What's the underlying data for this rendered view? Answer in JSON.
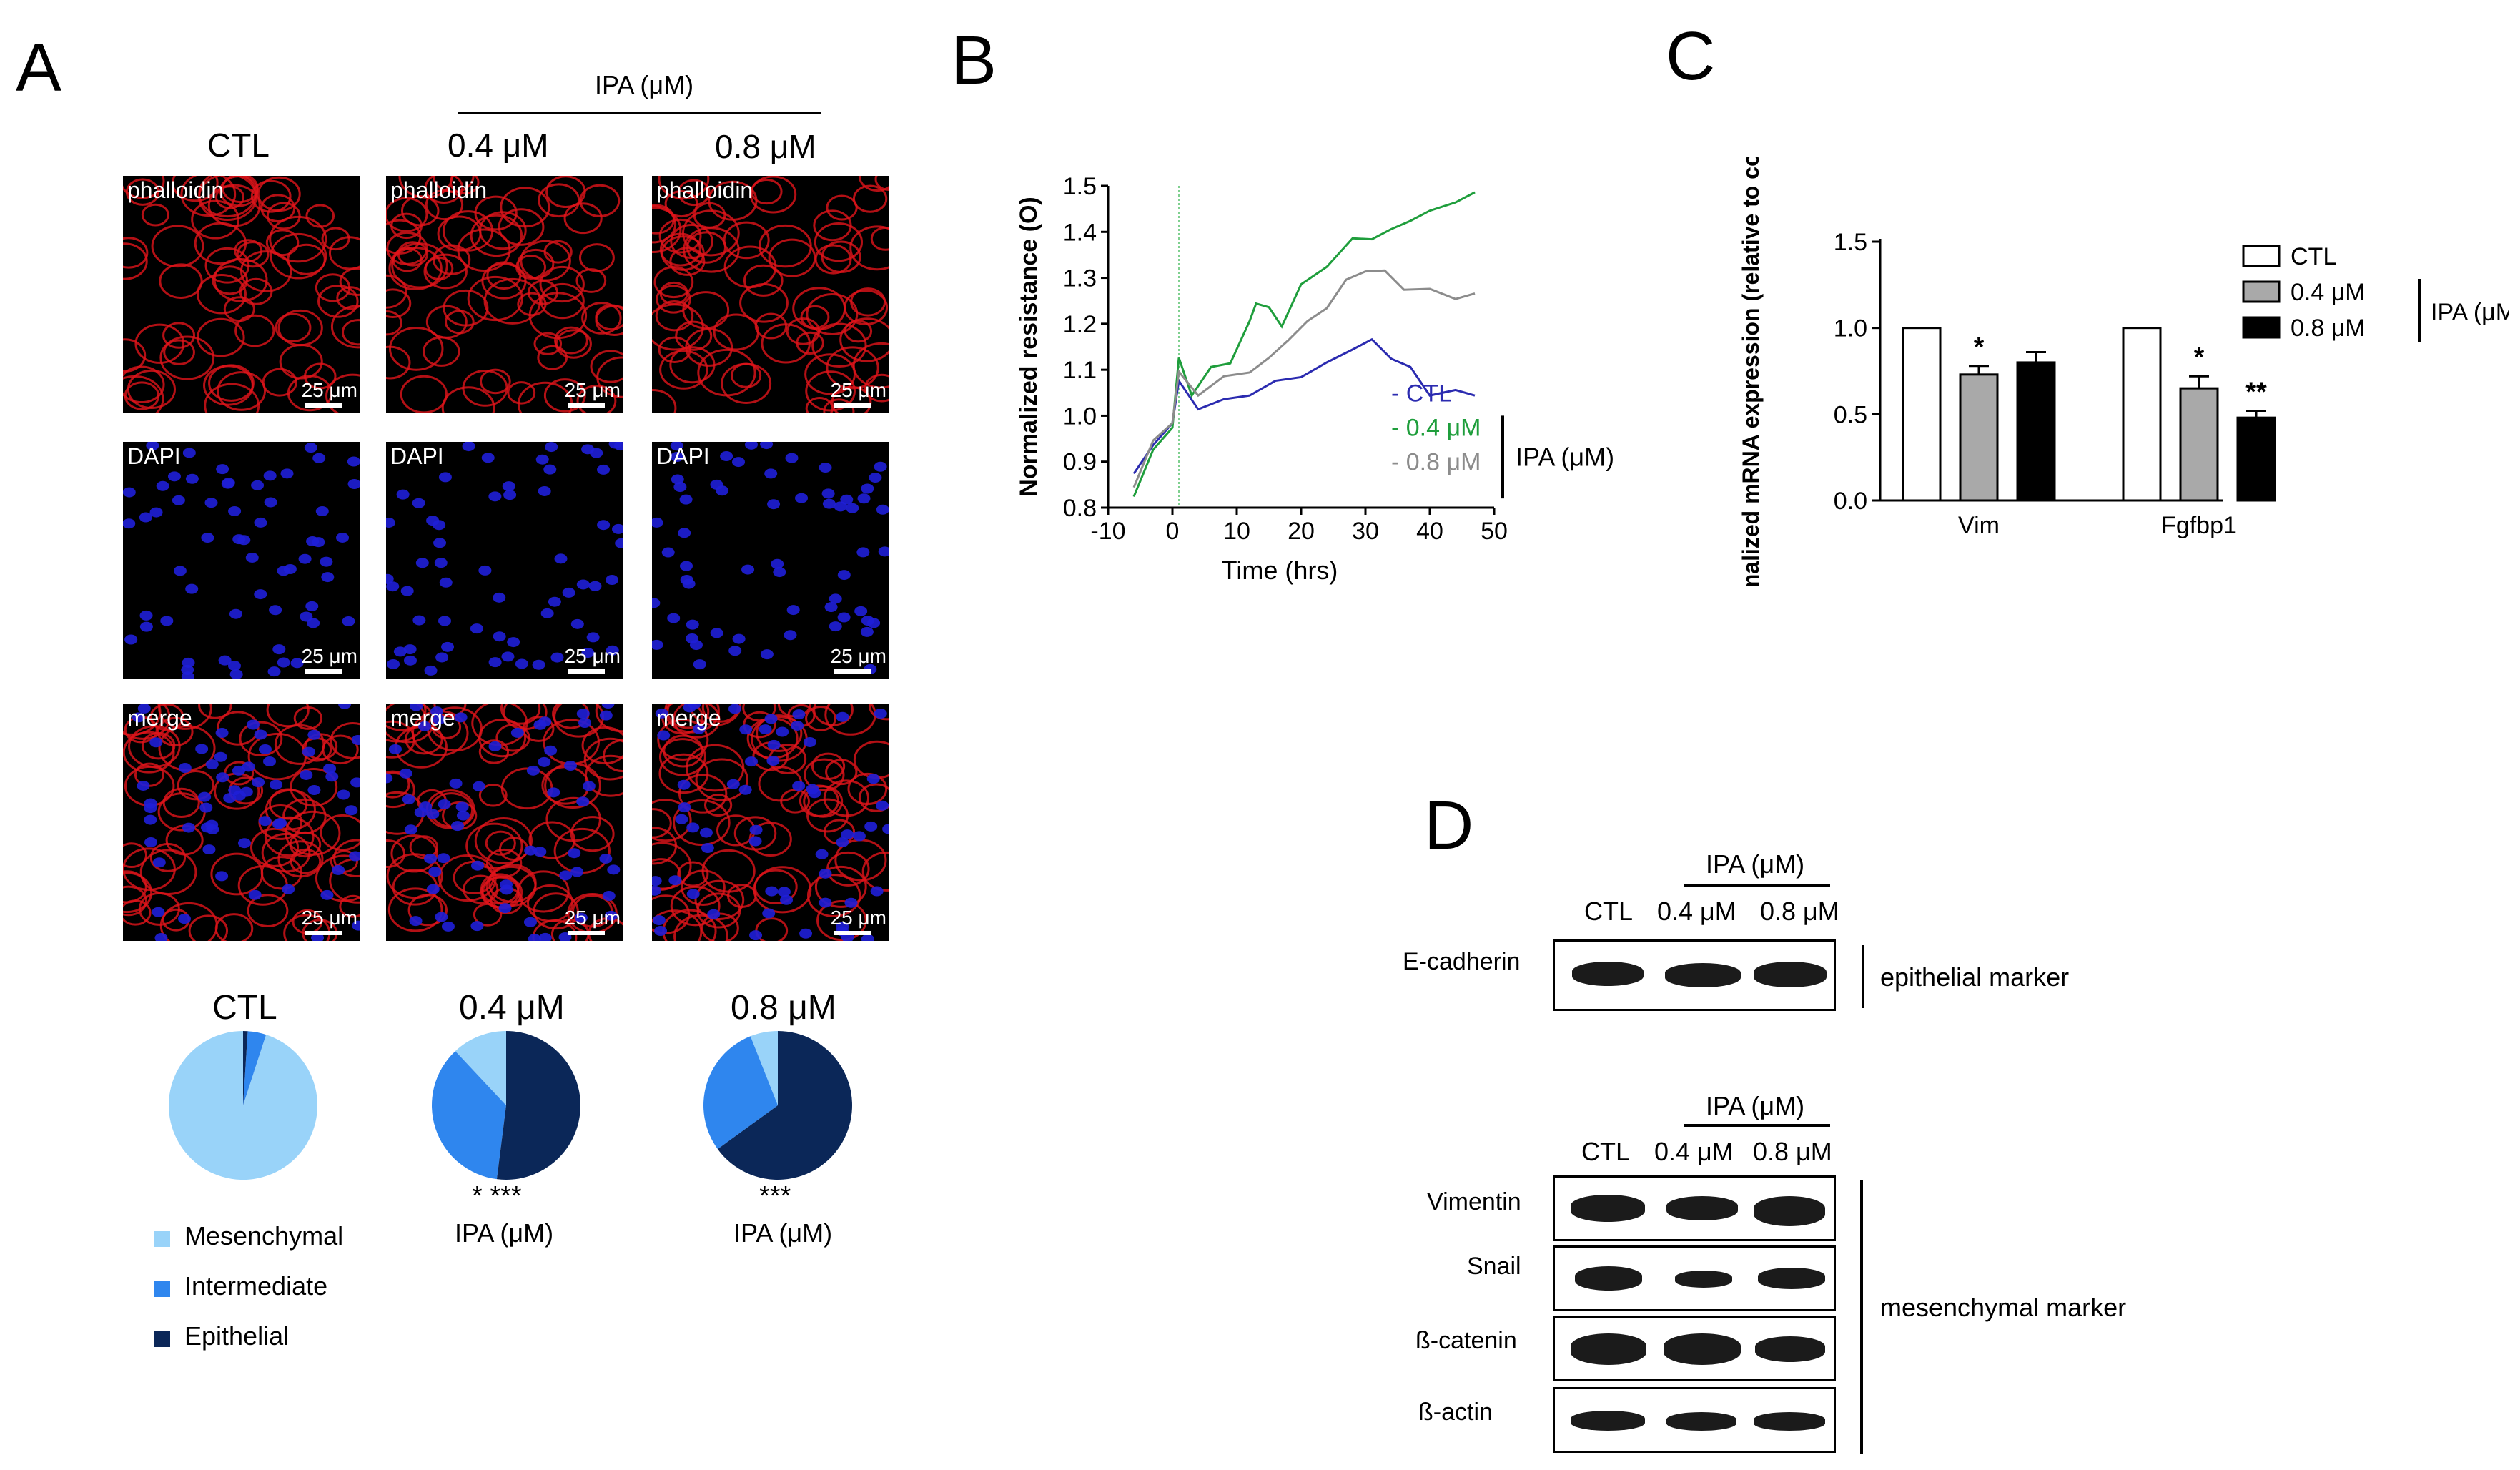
{
  "panels": {
    "A": "A",
    "B": "B",
    "C": "C",
    "D": "D"
  },
  "panelA": {
    "ipa_header": "IPA (μM)",
    "col_ctl": "CTL",
    "col_04": "0.4 μM",
    "col_08": "0.8 μM",
    "row_labels": [
      "phalloidin",
      "DAPI",
      "merge"
    ],
    "scale_bar": "25 μm",
    "pies": [
      {
        "title": "CTL",
        "fractions": {
          "mesenchymal": 0.95,
          "intermediate": 0.04,
          "epithelial": 0.01
        },
        "stars": "",
        "ipa": ""
      },
      {
        "title": "0.4 μM",
        "fractions": {
          "mesenchymal": 0.12,
          "intermediate": 0.36,
          "epithelial": 0.52
        },
        "stars": "* ***",
        "ipa": "IPA (μM)"
      },
      {
        "title": "0.8 μM",
        "fractions": {
          "mesenchymal": 0.06,
          "intermediate": 0.29,
          "epithelial": 0.65
        },
        "stars": "***",
        "ipa": "IPA (μM)"
      }
    ],
    "legend": [
      {
        "label": "Mesenchymal",
        "color": "#99d3f9"
      },
      {
        "label": "Intermediate",
        "color": "#2f86ee"
      },
      {
        "label": "Epithelial",
        "color": "#0b2758"
      }
    ]
  },
  "chart_data": [
    {
      "type": "line",
      "panel": "B",
      "xlabel": "Time (hrs)",
      "ylabel": "Normalized resistance (O)",
      "xlim": [
        -10,
        50
      ],
      "ylim": [
        0.8,
        1.5
      ],
      "xticks": [
        "-10",
        "0",
        "10",
        "20",
        "30",
        "40",
        "50"
      ],
      "yticks": [
        "0.8",
        "0.9",
        "1.0",
        "1.1",
        "1.2",
        "1.3",
        "1.4",
        "1.5"
      ],
      "group_label": "IPA (μM)",
      "series": [
        {
          "name": "- CTL",
          "color": "#2b2bb0",
          "x": [
            -6,
            -3,
            0,
            1,
            4,
            8,
            12,
            16,
            20,
            24,
            28,
            31,
            34,
            37,
            40,
            44,
            47
          ],
          "y": [
            0.88,
            0.93,
            0.99,
            1.07,
            1.02,
            1.03,
            1.05,
            1.07,
            1.09,
            1.11,
            1.15,
            1.16,
            1.13,
            1.1,
            1.05,
            1.05,
            1.05
          ]
        },
        {
          "name": "- 0.4 μM",
          "color": "#1f9e3c",
          "x": [
            -6,
            -3,
            0,
            1,
            3,
            6,
            9,
            12,
            13,
            15,
            17,
            20,
            24,
            28,
            31,
            34,
            37,
            40,
            44,
            47
          ],
          "y": [
            0.83,
            0.92,
            0.98,
            1.12,
            1.05,
            1.1,
            1.12,
            1.2,
            1.25,
            1.23,
            1.2,
            1.28,
            1.33,
            1.38,
            1.39,
            1.4,
            1.43,
            1.44,
            1.47,
            1.48
          ]
        },
        {
          "name": "- 0.8 μM",
          "color": "#8c8c8c",
          "x": [
            -6,
            -3,
            0,
            1,
            4,
            8,
            12,
            15,
            18,
            21,
            24,
            27,
            30,
            33,
            36,
            40,
            44,
            47
          ],
          "y": [
            0.85,
            0.94,
            0.99,
            1.09,
            1.05,
            1.08,
            1.1,
            1.12,
            1.17,
            1.2,
            1.24,
            1.29,
            1.32,
            1.31,
            1.28,
            1.27,
            1.26,
            1.26
          ]
        }
      ]
    },
    {
      "type": "bar",
      "panel": "C",
      "ylabel": "Normalized mRNA expression (relative to control)",
      "ylim": [
        0,
        1.5
      ],
      "yticks": [
        "0.0",
        "0.5",
        "1.0",
        "1.5"
      ],
      "categories": [
        "Vim",
        "Fgfbp1"
      ],
      "group_label": "IPA (μM)",
      "series": [
        {
          "name": "CTL",
          "color": "#ffffff",
          "values": [
            1.0,
            1.0
          ],
          "errors": [
            0,
            0
          ],
          "stars": [
            "",
            ""
          ]
        },
        {
          "name": "0.4 μM",
          "color": "#a9a9a9",
          "values": [
            0.73,
            0.65
          ],
          "errors": [
            0.05,
            0.07
          ],
          "stars": [
            "*",
            "*"
          ]
        },
        {
          "name": "0.8 μM",
          "color": "#000000",
          "values": [
            0.8,
            0.48
          ],
          "errors": [
            0.06,
            0.04
          ],
          "stars": [
            "",
            "**"
          ]
        }
      ]
    }
  ],
  "panelD": {
    "ipa_header": "IPA (μM)",
    "lanes": [
      "CTL",
      "0.4 μM",
      "0.8 μM"
    ],
    "top_proteins": [
      "E-cadherin"
    ],
    "top_group": "epithelial marker",
    "bottom_proteins": [
      "Vimentin",
      "Snail",
      "ß-catenin",
      "ß-actin"
    ],
    "bottom_group": "mesenchymal marker",
    "band_intensity": {
      "E-cadherin": [
        0.95,
        0.95,
        0.95
      ],
      "Vimentin": [
        0.9,
        0.85,
        0.9
      ],
      "Snail": [
        0.9,
        0.6,
        0.75
      ],
      "ß-catenin": [
        0.95,
        0.95,
        0.8
      ],
      "ß-actin": [
        0.85,
        0.85,
        0.85
      ]
    }
  }
}
